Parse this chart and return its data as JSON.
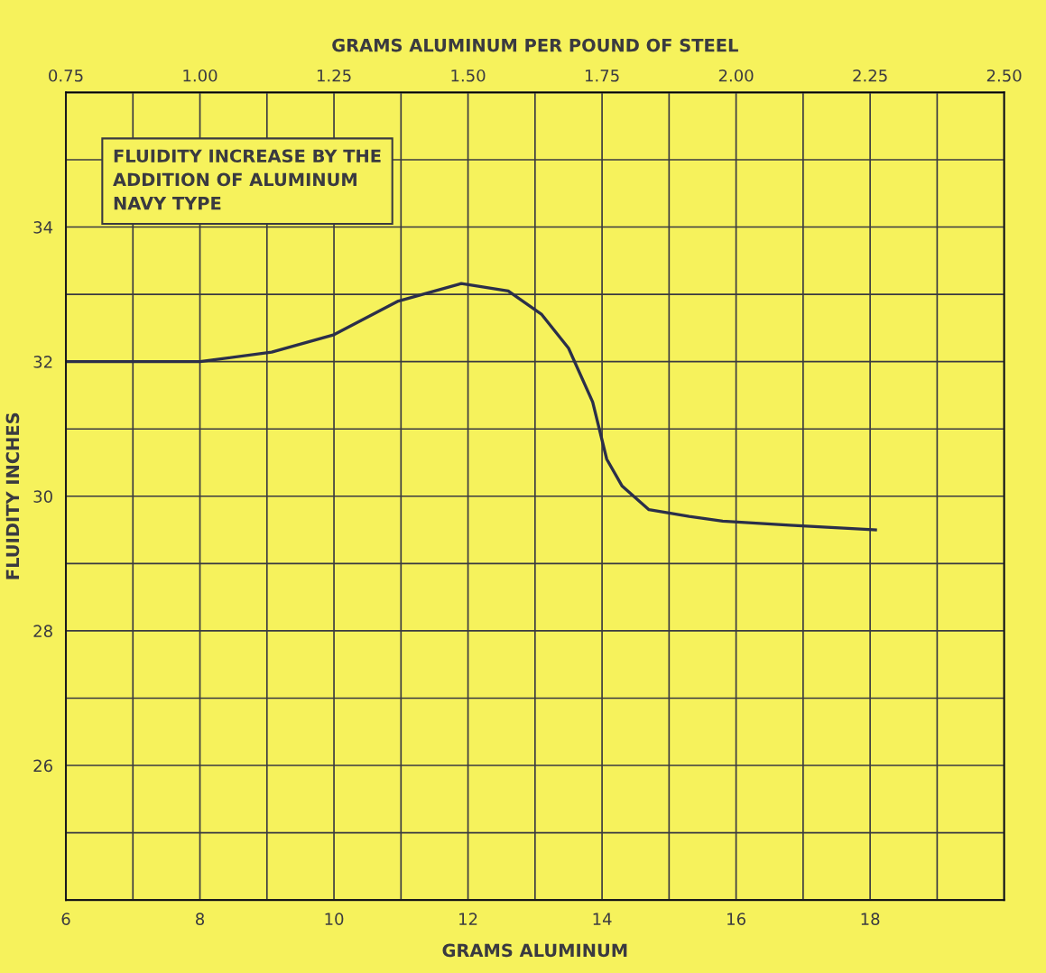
{
  "chart_data": {
    "type": "line",
    "xlabel": "GRAMS ALUMINUM",
    "ylabel": "FLUIDITY INCHES",
    "x2label": "GRAMS ALUMINUM PER POUND OF STEEL",
    "annotations": [
      "FLUIDITY INCREASE BY THE\nADDITION OF ALUMINUM\nNAVY TYPE"
    ],
    "x": [
      6,
      7,
      8,
      9.07,
      10.0,
      10.96,
      11.9,
      12.6,
      13.1,
      13.5,
      13.86,
      14.07,
      14.3,
      14.7,
      15.3,
      15.8,
      16.8,
      18.08
    ],
    "series": [
      {
        "color": "#2b2f4a",
        "values": [
          32.0,
          32.0,
          32.0,
          32.14,
          32.4,
          32.9,
          33.16,
          33.05,
          32.7,
          32.2,
          31.4,
          30.55,
          30.15,
          29.8,
          29.7,
          29.63,
          29.57,
          29.5
        ]
      }
    ],
    "xlim": [
      6,
      20
    ],
    "xticks": [
      6,
      8,
      10,
      12,
      14,
      16,
      18
    ],
    "ylim": [
      24,
      36
    ],
    "yticks": [
      26,
      28,
      30,
      32,
      34
    ],
    "x2lim": [
      0.75,
      2.5
    ],
    "x2ticks": [
      {
        "value": 0.75,
        "label": "0.75"
      },
      {
        "value": 1.0,
        "label": "1.00"
      },
      {
        "value": 1.25,
        "label": "1.25"
      },
      {
        "value": 1.5,
        "label": "1.50"
      },
      {
        "value": 1.75,
        "label": "1.75"
      },
      {
        "value": 2.0,
        "label": "2.00"
      },
      {
        "value": 2.25,
        "label": "2.25"
      },
      {
        "value": 2.5,
        "label": "2.50"
      }
    ],
    "grid": true,
    "marker": "none",
    "line_style": "solid",
    "legend": false
  }
}
